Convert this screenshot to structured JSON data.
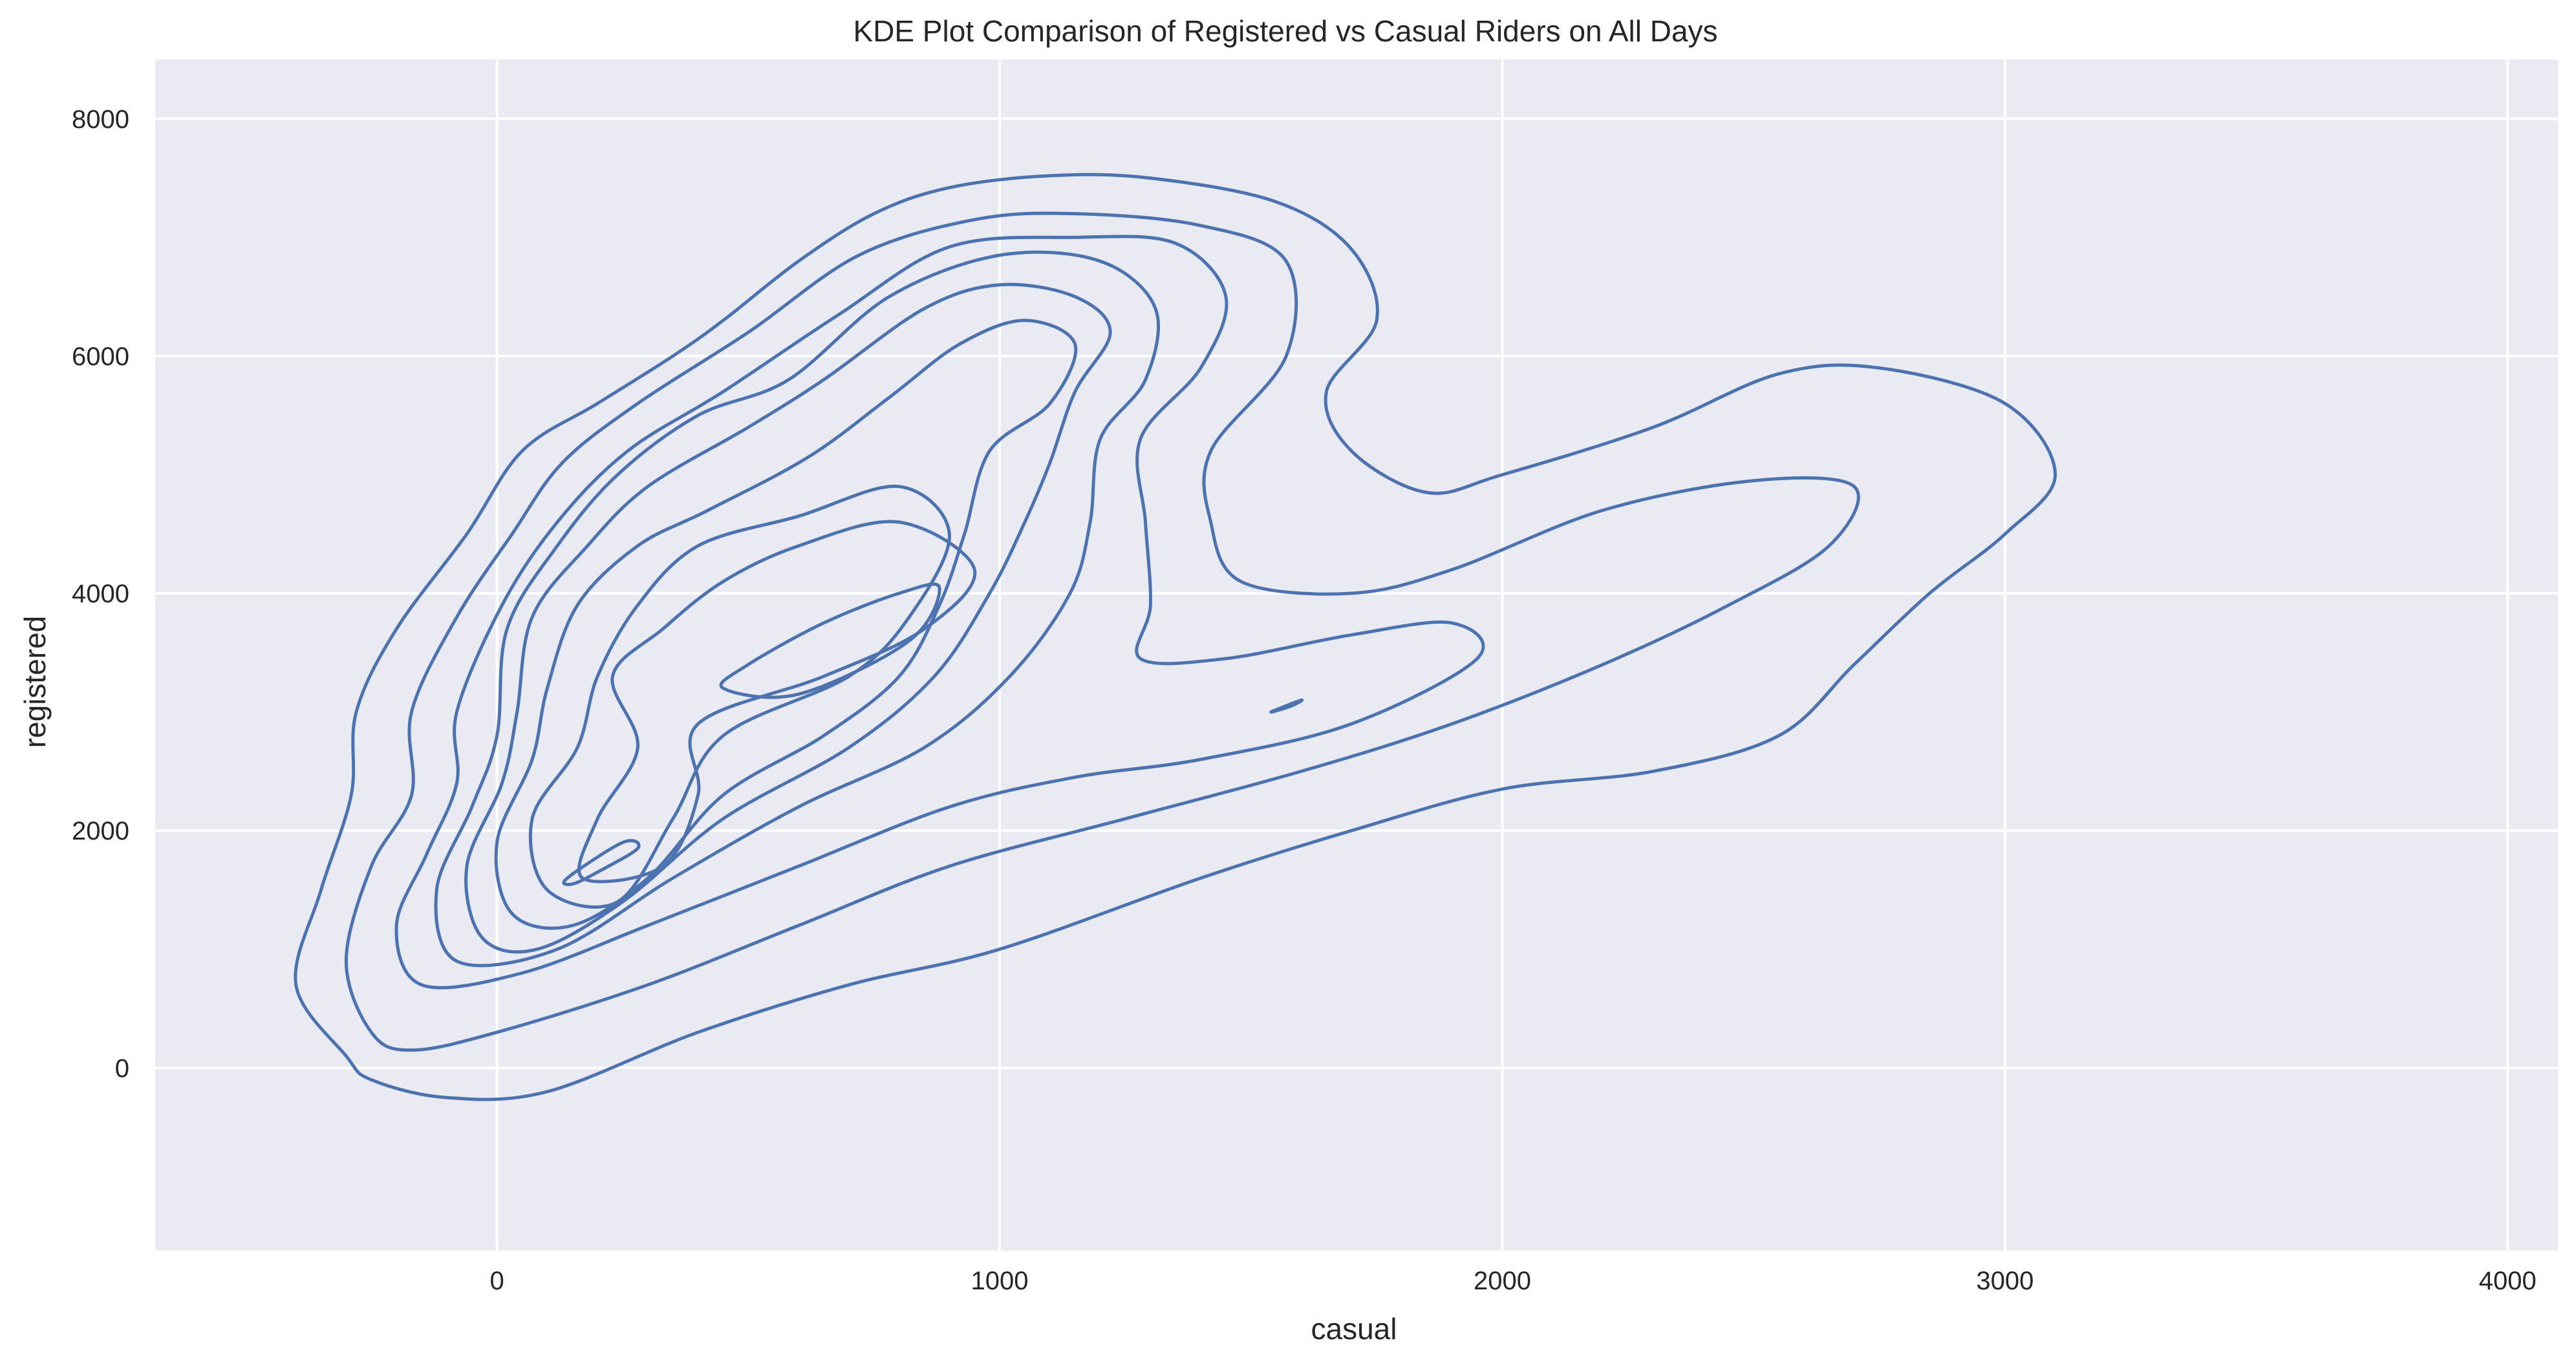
{
  "chart_data": {
    "type": "kde-contour",
    "title": "KDE Plot Comparison of Registered vs Casual Riders on All Days",
    "xlabel": "casual",
    "ylabel": "registered",
    "xlim": [
      -680,
      4100
    ],
    "ylim": [
      -1540,
      8500
    ],
    "xticks": [
      0,
      1000,
      2000,
      3000,
      4000
    ],
    "xtick_labels": [
      "0",
      "1000",
      "2000",
      "3000",
      "4000"
    ],
    "yticks": [
      0,
      2000,
      4000,
      6000,
      8000
    ],
    "ytick_labels": [
      "0",
      "2000",
      "4000",
      "6000",
      "8000"
    ],
    "grid": true,
    "legend": "none",
    "colors": {
      "line": "#4c72b0",
      "plot_bg": "#eaeaf2",
      "grid": "#ffffff",
      "text": "#262626"
    },
    "series": [
      {
        "level": 1,
        "points": [
          [
            -300,
            100
          ],
          [
            -400,
            700
          ],
          [
            -350,
            1500
          ],
          [
            -290,
            2300
          ],
          [
            -280,
            3000
          ],
          [
            -200,
            3700
          ],
          [
            -60,
            4500
          ],
          [
            50,
            5200
          ],
          [
            200,
            5600
          ],
          [
            350,
            6000
          ],
          [
            450,
            6300
          ],
          [
            600,
            6800
          ],
          [
            750,
            7200
          ],
          [
            900,
            7420
          ],
          [
            1100,
            7520
          ],
          [
            1300,
            7500
          ],
          [
            1550,
            7300
          ],
          [
            1700,
            6900
          ],
          [
            1750,
            6300
          ],
          [
            1650,
            5700
          ],
          [
            1700,
            5200
          ],
          [
            1850,
            4850
          ],
          [
            2000,
            5000
          ],
          [
            2300,
            5400
          ],
          [
            2550,
            5850
          ],
          [
            2750,
            5900
          ],
          [
            3000,
            5600
          ],
          [
            3100,
            5000
          ],
          [
            3000,
            4500
          ],
          [
            2850,
            4000
          ],
          [
            2700,
            3400
          ],
          [
            2550,
            2800
          ],
          [
            2300,
            2500
          ],
          [
            2000,
            2350
          ],
          [
            1700,
            2000
          ],
          [
            1400,
            1600
          ],
          [
            1000,
            1000
          ],
          [
            700,
            700
          ],
          [
            400,
            300
          ],
          [
            100,
            -200
          ],
          [
            -100,
            -250
          ],
          [
            -250,
            -100
          ]
        ]
      },
      {
        "level": 2,
        "points": [
          [
            -250,
            300
          ],
          [
            -300,
            900
          ],
          [
            -250,
            1700
          ],
          [
            -170,
            2300
          ],
          [
            -170,
            3000
          ],
          [
            -80,
            3800
          ],
          [
            30,
            4500
          ],
          [
            130,
            5100
          ],
          [
            280,
            5600
          ],
          [
            500,
            6200
          ],
          [
            720,
            6850
          ],
          [
            950,
            7150
          ],
          [
            1150,
            7200
          ],
          [
            1400,
            7100
          ],
          [
            1570,
            6800
          ],
          [
            1570,
            6000
          ],
          [
            1420,
            5200
          ],
          [
            1420,
            4600
          ],
          [
            1480,
            4100
          ],
          [
            1700,
            4000
          ],
          [
            1900,
            4200
          ],
          [
            2200,
            4700
          ],
          [
            2500,
            4950
          ],
          [
            2700,
            4900
          ],
          [
            2650,
            4400
          ],
          [
            2450,
            3900
          ],
          [
            2200,
            3400
          ],
          [
            1900,
            2900
          ],
          [
            1600,
            2500
          ],
          [
            1250,
            2100
          ],
          [
            900,
            1700
          ],
          [
            600,
            1200
          ],
          [
            300,
            700
          ],
          [
            0,
            300
          ],
          [
            -170,
            150
          ]
        ]
      },
      {
        "level": 3,
        "points": [
          [
            -150,
            700
          ],
          [
            -200,
            1200
          ],
          [
            -140,
            1800
          ],
          [
            -80,
            2400
          ],
          [
            -80,
            3000
          ],
          [
            10,
            3900
          ],
          [
            120,
            4600
          ],
          [
            260,
            5200
          ],
          [
            450,
            5700
          ],
          [
            680,
            6350
          ],
          [
            900,
            6920
          ],
          [
            1150,
            7000
          ],
          [
            1350,
            6950
          ],
          [
            1450,
            6500
          ],
          [
            1400,
            5900
          ],
          [
            1280,
            5300
          ],
          [
            1290,
            4600
          ],
          [
            1300,
            3900
          ],
          [
            1280,
            3450
          ],
          [
            1450,
            3450
          ],
          [
            1700,
            3650
          ],
          [
            1900,
            3750
          ],
          [
            1950,
            3450
          ],
          [
            1700,
            2900
          ],
          [
            1400,
            2600
          ],
          [
            1150,
            2450
          ],
          [
            900,
            2200
          ],
          [
            600,
            1700
          ],
          [
            300,
            1200
          ],
          [
            50,
            800
          ]
        ]
      },
      {
        "level": 4,
        "points": [
          [
            -80,
            900
          ],
          [
            -120,
            1500
          ],
          [
            -50,
            2200
          ],
          [
            0,
            2800
          ],
          [
            20,
            3700
          ],
          [
            120,
            4400
          ],
          [
            240,
            5000
          ],
          [
            400,
            5500
          ],
          [
            580,
            5800
          ],
          [
            780,
            6500
          ],
          [
            1000,
            6850
          ],
          [
            1200,
            6800
          ],
          [
            1310,
            6400
          ],
          [
            1290,
            5800
          ],
          [
            1200,
            5300
          ],
          [
            1180,
            4600
          ],
          [
            1140,
            4000
          ],
          [
            1020,
            3300
          ],
          [
            850,
            2700
          ],
          [
            600,
            2200
          ],
          [
            350,
            1600
          ],
          [
            120,
            1000
          ]
        ]
      },
      {
        "level": 5,
        "points": [
          [
            -30,
            1100
          ],
          [
            -60,
            1700
          ],
          [
            10,
            2400
          ],
          [
            40,
            3000
          ],
          [
            70,
            3800
          ],
          [
            180,
            4400
          ],
          [
            300,
            4900
          ],
          [
            500,
            5400
          ],
          [
            650,
            5800
          ],
          [
            850,
            6400
          ],
          [
            1000,
            6600
          ],
          [
            1150,
            6500
          ],
          [
            1220,
            6200
          ],
          [
            1150,
            5700
          ],
          [
            1100,
            5100
          ],
          [
            1050,
            4600
          ],
          [
            980,
            4000
          ],
          [
            870,
            3300
          ],
          [
            700,
            2700
          ],
          [
            450,
            2100
          ],
          [
            250,
            1400
          ],
          [
            80,
            1000
          ]
        ]
      },
      {
        "level": 6,
        "points": [
          [
            30,
            1300
          ],
          [
            0,
            1900
          ],
          [
            70,
            2600
          ],
          [
            100,
            3200
          ],
          [
            160,
            3900
          ],
          [
            280,
            4400
          ],
          [
            420,
            4700
          ],
          [
            620,
            5150
          ],
          [
            780,
            5650
          ],
          [
            920,
            6100
          ],
          [
            1050,
            6300
          ],
          [
            1150,
            6100
          ],
          [
            1100,
            5600
          ],
          [
            980,
            5200
          ],
          [
            930,
            4500
          ],
          [
            880,
            3900
          ],
          [
            800,
            3300
          ],
          [
            650,
            2800
          ],
          [
            450,
            2300
          ],
          [
            300,
            1600
          ],
          [
            150,
            1200
          ]
        ]
      },
      {
        "level": 7,
        "points": [
          [
            100,
            1500
          ],
          [
            70,
            2100
          ],
          [
            160,
            2700
          ],
          [
            200,
            3300
          ],
          [
            280,
            3900
          ],
          [
            400,
            4400
          ],
          [
            600,
            4650
          ],
          [
            800,
            4900
          ],
          [
            900,
            4500
          ],
          [
            820,
            3800
          ],
          [
            700,
            3300
          ],
          [
            450,
            2800
          ],
          [
            350,
            2100
          ],
          [
            240,
            1400
          ]
        ]
      },
      {
        "level": 8,
        "points": [
          [
            170,
            1600
          ],
          [
            200,
            2100
          ],
          [
            280,
            2700
          ],
          [
            230,
            3300
          ],
          [
            330,
            3700
          ],
          [
            450,
            4100
          ],
          [
            600,
            4400
          ],
          [
            800,
            4600
          ],
          [
            950,
            4200
          ],
          [
            850,
            3700
          ],
          [
            650,
            3300
          ],
          [
            400,
            2900
          ],
          [
            400,
            2300
          ],
          [
            330,
            1700
          ]
        ]
      },
      {
        "level": 9,
        "points": [
          [
            500,
            3400
          ],
          [
            650,
            3750
          ],
          [
            800,
            4000
          ],
          [
            880,
            4050
          ],
          [
            820,
            3600
          ],
          [
            600,
            3150
          ],
          [
            450,
            3200
          ]
        ]
      },
      {
        "level": 10,
        "points": [
          [
            140,
            1600
          ],
          [
            250,
            1900
          ],
          [
            280,
            1850
          ],
          [
            200,
            1650
          ],
          [
            150,
            1550
          ]
        ]
      },
      {
        "level": 11,
        "points": [
          [
            1540,
            3000
          ],
          [
            1600,
            3100
          ],
          [
            1580,
            3050
          ]
        ]
      }
    ]
  }
}
